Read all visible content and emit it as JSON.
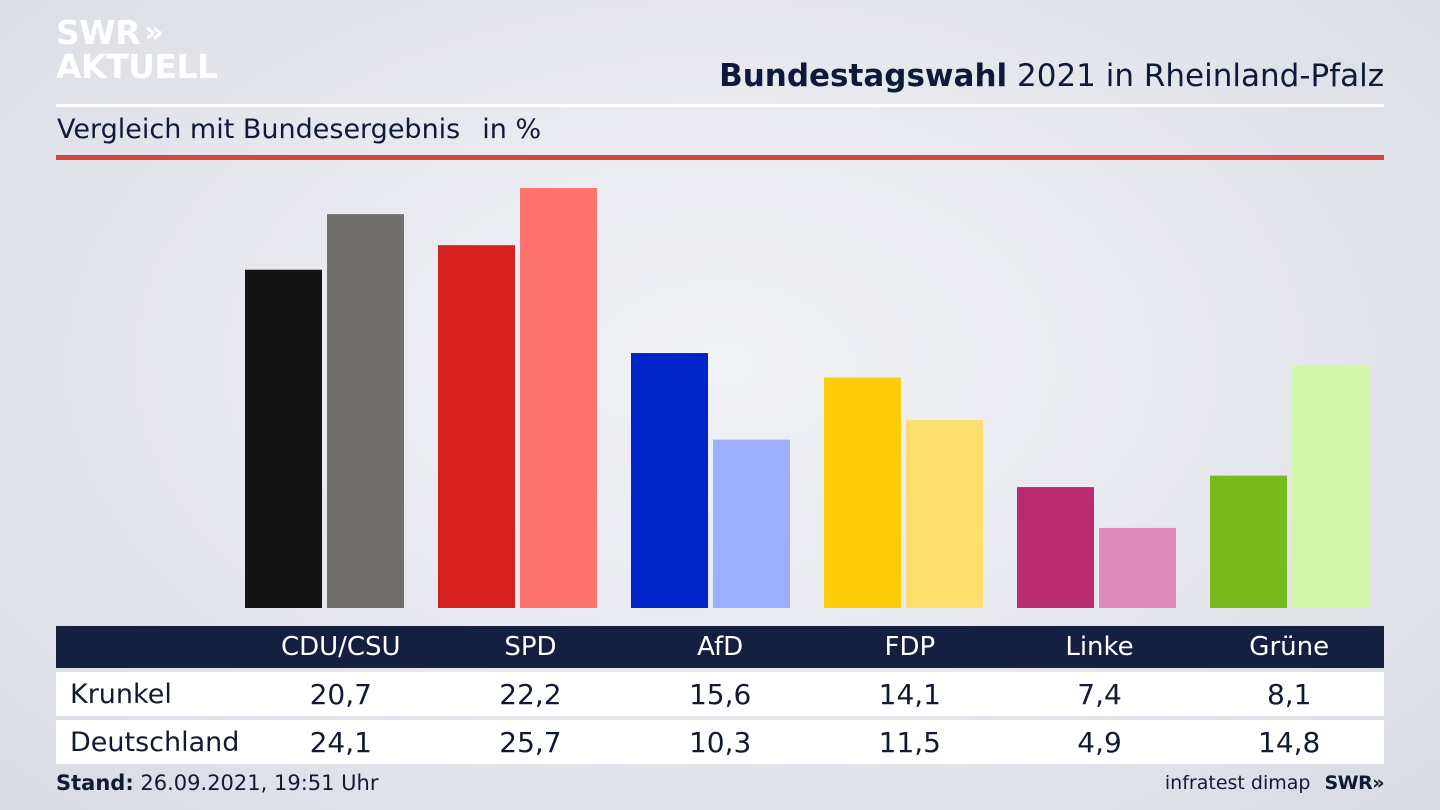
{
  "brand": {
    "line1": "SWR",
    "line2": "AKTUELL",
    "chevrons": "»"
  },
  "header": {
    "title_bold": "Bundestagswahl",
    "title_rest": " 2021 in Rheinland-Pfalz",
    "subtitle": "Vergleich mit Bundesergebnis",
    "unit": "in %"
  },
  "chart_data": {
    "type": "bar",
    "categories": [
      "CDU/CSU",
      "SPD",
      "AfD",
      "FDP",
      "Linke",
      "Grüne"
    ],
    "series": [
      {
        "name": "Krunkel",
        "values": [
          20.7,
          22.2,
          15.6,
          14.1,
          7.4,
          8.1
        ],
        "colors": [
          "#141414",
          "#d61f1f",
          "#0023c8",
          "#ffcc0a",
          "#b92d70",
          "#79bb1f"
        ]
      },
      {
        "name": "Deutschland",
        "values": [
          24.1,
          25.7,
          10.3,
          11.5,
          4.9,
          14.8
        ],
        "colors": [
          "#706f6c",
          "#ff746f",
          "#9eaeff",
          "#ffdf70",
          "#e08cbb",
          "#d4f6a8"
        ]
      }
    ],
    "ylim": [
      0,
      25.7
    ],
    "grid": false,
    "legend": "table-below"
  },
  "table": {
    "header": [
      "",
      "CDU/CSU",
      "SPD",
      "AfD",
      "FDP",
      "Linke",
      "Grüne"
    ],
    "rows": [
      {
        "label": "Krunkel",
        "cells": [
          "20,7",
          "22,2",
          "15,6",
          "14,1",
          "7,4",
          "8,1"
        ]
      },
      {
        "label": "Deutschland",
        "cells": [
          "24,1",
          "25,7",
          "10,3",
          "11,5",
          "4,9",
          "14,8"
        ]
      }
    ]
  },
  "footer": {
    "stand_label": "Stand:",
    "stand_value": " 26.09.2021, 19:51 Uhr",
    "source": "infratest dimap",
    "brand": "SWR»"
  },
  "colors": {
    "navy": "#14203f",
    "accent_red": "#d6443a",
    "white": "#ffffff"
  }
}
